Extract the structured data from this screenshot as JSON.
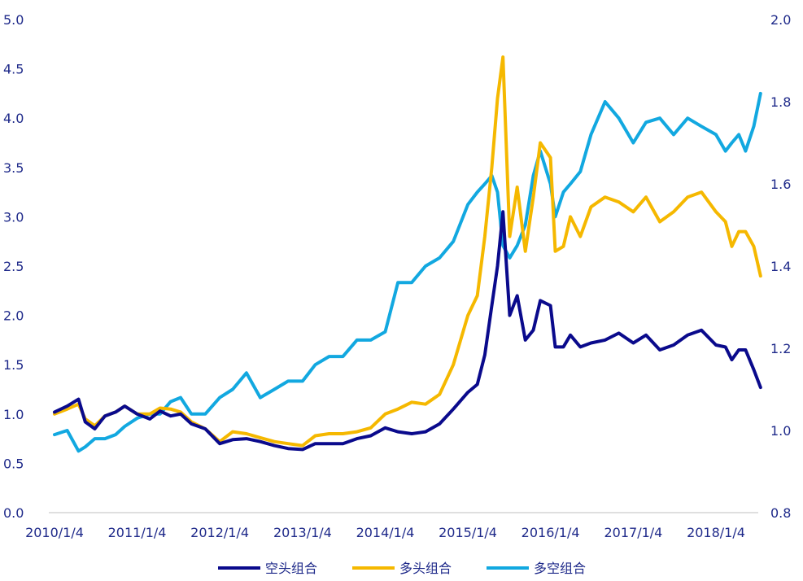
{
  "chart_data": {
    "type": "line",
    "x_ticks": [
      "2010/1/4",
      "2011/1/4",
      "2012/1/4",
      "2013/1/4",
      "2014/1/4",
      "2015/1/4",
      "2016/1/4",
      "2017/1/4",
      "2018/1/4"
    ],
    "y_left": {
      "ylim": [
        0,
        5
      ],
      "ticks": [
        "0.0",
        "0.5",
        "1.0",
        "1.5",
        "2.0",
        "2.5",
        "3.0",
        "3.5",
        "4.0",
        "4.5",
        "5.0"
      ]
    },
    "y_right": {
      "ylim": [
        0.8,
        2.0
      ],
      "ticks": [
        "0.8",
        "1.0",
        "1.2",
        "1.4",
        "1.6",
        "1.8",
        "2.0"
      ]
    },
    "grid": false,
    "legend_position": "bottom",
    "series": [
      {
        "name": "空头组合",
        "axis": "left",
        "color": "#0a0a8c",
        "points": [
          [
            "2010-01-04",
            1.02
          ],
          [
            "2010-03-01",
            1.08
          ],
          [
            "2010-04-20",
            1.15
          ],
          [
            "2010-05-20",
            0.92
          ],
          [
            "2010-07-01",
            0.85
          ],
          [
            "2010-08-15",
            0.98
          ],
          [
            "2010-10-01",
            1.02
          ],
          [
            "2010-11-10",
            1.08
          ],
          [
            "2011-01-04",
            1.0
          ],
          [
            "2011-03-01",
            0.95
          ],
          [
            "2011-04-15",
            1.03
          ],
          [
            "2011-06-01",
            0.98
          ],
          [
            "2011-07-15",
            1.0
          ],
          [
            "2011-09-01",
            0.9
          ],
          [
            "2011-11-01",
            0.85
          ],
          [
            "2012-01-04",
            0.7
          ],
          [
            "2012-03-01",
            0.74
          ],
          [
            "2012-05-01",
            0.75
          ],
          [
            "2012-07-01",
            0.72
          ],
          [
            "2012-09-01",
            0.68
          ],
          [
            "2012-11-01",
            0.65
          ],
          [
            "2013-01-04",
            0.64
          ],
          [
            "2013-03-01",
            0.7
          ],
          [
            "2013-05-01",
            0.7
          ],
          [
            "2013-07-01",
            0.7
          ],
          [
            "2013-09-01",
            0.75
          ],
          [
            "2013-11-01",
            0.78
          ],
          [
            "2014-01-04",
            0.86
          ],
          [
            "2014-03-01",
            0.82
          ],
          [
            "2014-05-01",
            0.8
          ],
          [
            "2014-07-01",
            0.82
          ],
          [
            "2014-09-01",
            0.9
          ],
          [
            "2014-11-01",
            1.05
          ],
          [
            "2015-01-04",
            1.22
          ],
          [
            "2015-02-15",
            1.3
          ],
          [
            "2015-03-20",
            1.6
          ],
          [
            "2015-04-20",
            2.1
          ],
          [
            "2015-05-15",
            2.5
          ],
          [
            "2015-06-08",
            3.05
          ],
          [
            "2015-07-08",
            2.0
          ],
          [
            "2015-08-10",
            2.2
          ],
          [
            "2015-09-15",
            1.75
          ],
          [
            "2015-10-20",
            1.85
          ],
          [
            "2015-11-20",
            2.15
          ],
          [
            "2016-01-04",
            2.1
          ],
          [
            "2016-01-25",
            1.68
          ],
          [
            "2016-03-01",
            1.68
          ],
          [
            "2016-04-01",
            1.8
          ],
          [
            "2016-05-15",
            1.68
          ],
          [
            "2016-07-01",
            1.72
          ],
          [
            "2016-09-01",
            1.75
          ],
          [
            "2016-11-01",
            1.82
          ],
          [
            "2017-01-04",
            1.72
          ],
          [
            "2017-03-01",
            1.8
          ],
          [
            "2017-05-01",
            1.65
          ],
          [
            "2017-07-01",
            1.7
          ],
          [
            "2017-09-01",
            1.8
          ],
          [
            "2017-11-01",
            1.85
          ],
          [
            "2018-01-04",
            1.7
          ],
          [
            "2018-02-15",
            1.68
          ],
          [
            "2018-03-15",
            1.55
          ],
          [
            "2018-04-15",
            1.65
          ],
          [
            "2018-05-15",
            1.65
          ],
          [
            "2018-06-20",
            1.45
          ],
          [
            "2018-07-20",
            1.27
          ]
        ]
      },
      {
        "name": "多头组合",
        "axis": "left",
        "color": "#f5b800",
        "points": [
          [
            "2010-01-04",
            1.0
          ],
          [
            "2010-03-01",
            1.05
          ],
          [
            "2010-04-20",
            1.1
          ],
          [
            "2010-05-20",
            0.95
          ],
          [
            "2010-07-01",
            0.88
          ],
          [
            "2010-08-15",
            0.98
          ],
          [
            "2010-10-01",
            1.02
          ],
          [
            "2010-11-10",
            1.08
          ],
          [
            "2011-01-04",
            1.0
          ],
          [
            "2011-03-01",
            1.0
          ],
          [
            "2011-04-15",
            1.06
          ],
          [
            "2011-06-01",
            1.05
          ],
          [
            "2011-07-15",
            1.02
          ],
          [
            "2011-09-01",
            0.92
          ],
          [
            "2011-11-01",
            0.85
          ],
          [
            "2012-01-04",
            0.72
          ],
          [
            "2012-03-01",
            0.82
          ],
          [
            "2012-05-01",
            0.8
          ],
          [
            "2012-07-01",
            0.76
          ],
          [
            "2012-09-01",
            0.72
          ],
          [
            "2012-11-01",
            0.7
          ],
          [
            "2013-01-04",
            0.68
          ],
          [
            "2013-03-01",
            0.78
          ],
          [
            "2013-05-01",
            0.8
          ],
          [
            "2013-07-01",
            0.8
          ],
          [
            "2013-09-01",
            0.82
          ],
          [
            "2013-11-01",
            0.86
          ],
          [
            "2014-01-04",
            1.0
          ],
          [
            "2014-03-01",
            1.05
          ],
          [
            "2014-05-01",
            1.12
          ],
          [
            "2014-07-01",
            1.1
          ],
          [
            "2014-09-01",
            1.2
          ],
          [
            "2014-11-01",
            1.5
          ],
          [
            "2015-01-04",
            2.0
          ],
          [
            "2015-02-15",
            2.2
          ],
          [
            "2015-03-20",
            2.8
          ],
          [
            "2015-04-20",
            3.5
          ],
          [
            "2015-05-15",
            4.2
          ],
          [
            "2015-06-08",
            4.62
          ],
          [
            "2015-07-08",
            2.8
          ],
          [
            "2015-08-10",
            3.3
          ],
          [
            "2015-09-15",
            2.65
          ],
          [
            "2015-10-20",
            3.2
          ],
          [
            "2015-11-20",
            3.75
          ],
          [
            "2016-01-04",
            3.6
          ],
          [
            "2016-01-25",
            2.65
          ],
          [
            "2016-03-01",
            2.7
          ],
          [
            "2016-04-01",
            3.0
          ],
          [
            "2016-05-15",
            2.8
          ],
          [
            "2016-07-01",
            3.1
          ],
          [
            "2016-09-01",
            3.2
          ],
          [
            "2016-11-01",
            3.15
          ],
          [
            "2017-01-04",
            3.05
          ],
          [
            "2017-03-01",
            3.2
          ],
          [
            "2017-05-01",
            2.95
          ],
          [
            "2017-07-01",
            3.05
          ],
          [
            "2017-09-01",
            3.2
          ],
          [
            "2017-11-01",
            3.25
          ],
          [
            "2018-01-04",
            3.05
          ],
          [
            "2018-02-15",
            2.95
          ],
          [
            "2018-03-15",
            2.7
          ],
          [
            "2018-04-15",
            2.85
          ],
          [
            "2018-05-15",
            2.85
          ],
          [
            "2018-06-20",
            2.7
          ],
          [
            "2018-07-20",
            2.4
          ]
        ]
      },
      {
        "name": "多空组合",
        "axis": "right",
        "color": "#12a8e0",
        "points": [
          [
            "2010-01-04",
            0.99
          ],
          [
            "2010-03-01",
            1.0
          ],
          [
            "2010-04-20",
            0.95
          ],
          [
            "2010-05-20",
            0.96
          ],
          [
            "2010-07-01",
            0.98
          ],
          [
            "2010-08-15",
            0.98
          ],
          [
            "2010-10-01",
            0.99
          ],
          [
            "2010-11-10",
            1.01
          ],
          [
            "2011-01-04",
            1.03
          ],
          [
            "2011-03-01",
            1.04
          ],
          [
            "2011-04-15",
            1.04
          ],
          [
            "2011-06-01",
            1.07
          ],
          [
            "2011-07-15",
            1.08
          ],
          [
            "2011-09-01",
            1.04
          ],
          [
            "2011-11-01",
            1.04
          ],
          [
            "2012-01-04",
            1.08
          ],
          [
            "2012-03-01",
            1.1
          ],
          [
            "2012-05-01",
            1.14
          ],
          [
            "2012-07-01",
            1.08
          ],
          [
            "2012-09-01",
            1.1
          ],
          [
            "2012-11-01",
            1.12
          ],
          [
            "2013-01-04",
            1.12
          ],
          [
            "2013-03-01",
            1.16
          ],
          [
            "2013-05-01",
            1.18
          ],
          [
            "2013-07-01",
            1.18
          ],
          [
            "2013-09-01",
            1.22
          ],
          [
            "2013-11-01",
            1.22
          ],
          [
            "2014-01-04",
            1.24
          ],
          [
            "2014-03-01",
            1.36
          ],
          [
            "2014-05-01",
            1.36
          ],
          [
            "2014-07-01",
            1.4
          ],
          [
            "2014-09-01",
            1.42
          ],
          [
            "2014-11-01",
            1.46
          ],
          [
            "2015-01-04",
            1.55
          ],
          [
            "2015-02-15",
            1.58
          ],
          [
            "2015-03-20",
            1.6
          ],
          [
            "2015-04-20",
            1.62
          ],
          [
            "2015-05-15",
            1.58
          ],
          [
            "2015-06-08",
            1.45
          ],
          [
            "2015-07-08",
            1.42
          ],
          [
            "2015-08-10",
            1.45
          ],
          [
            "2015-09-15",
            1.5
          ],
          [
            "2015-10-20",
            1.62
          ],
          [
            "2015-11-20",
            1.68
          ],
          [
            "2016-01-04",
            1.6
          ],
          [
            "2016-01-25",
            1.52
          ],
          [
            "2016-03-01",
            1.58
          ],
          [
            "2016-04-01",
            1.6
          ],
          [
            "2016-05-15",
            1.63
          ],
          [
            "2016-07-01",
            1.72
          ],
          [
            "2016-09-01",
            1.8
          ],
          [
            "2016-11-01",
            1.76
          ],
          [
            "2017-01-04",
            1.7
          ],
          [
            "2017-03-01",
            1.75
          ],
          [
            "2017-05-01",
            1.76
          ],
          [
            "2017-07-01",
            1.72
          ],
          [
            "2017-09-01",
            1.76
          ],
          [
            "2017-11-01",
            1.74
          ],
          [
            "2018-01-04",
            1.72
          ],
          [
            "2018-02-15",
            1.68
          ],
          [
            "2018-03-15",
            1.7
          ],
          [
            "2018-04-15",
            1.72
          ],
          [
            "2018-05-15",
            1.68
          ],
          [
            "2018-06-20",
            1.74
          ],
          [
            "2018-07-20",
            1.82
          ]
        ]
      }
    ]
  }
}
